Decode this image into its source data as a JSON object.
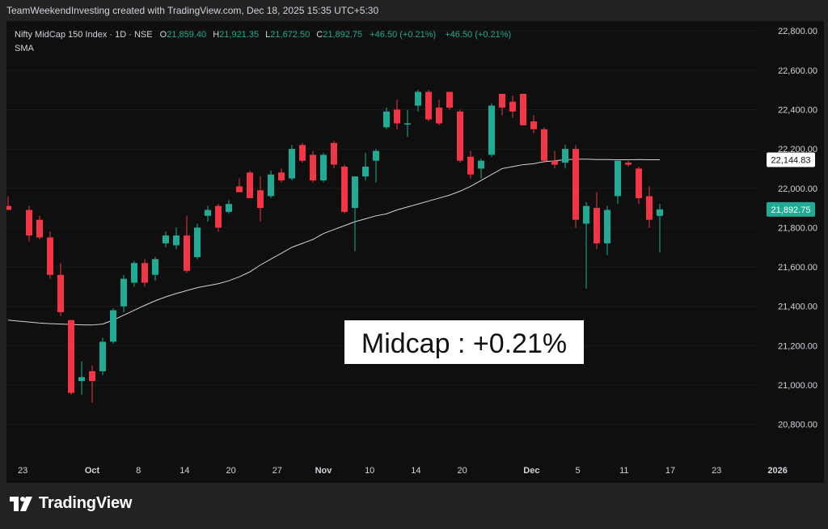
{
  "header": {
    "credit": "TeamWeekendInvesting created with TradingView.com, Dec 18, 2025 15:35 UTC+5:30"
  },
  "legend": {
    "symbol": "Nifty MidCap 150 Index · 1D · NSE",
    "o_label": "O",
    "o_value": "21,859.40",
    "h_label": "H",
    "h_value": "21,921.35",
    "l_label": "L",
    "l_value": "21,672.50",
    "c_label": "C",
    "c_value": "21,892.75",
    "change1": "+46.50 (+0.21%)",
    "change2": "+46.50 (+0.21%)",
    "indicator": "SMA"
  },
  "annotation": "Midcap : +0.21%",
  "footer": {
    "brand": "TradingView"
  },
  "colors": {
    "up": "#22ab94",
    "down": "#f23645",
    "sma": "#d1d4dc",
    "background": "#0f0f0f",
    "text": "#d1d4dc",
    "value_text": "#22ab94"
  },
  "chart_data": {
    "type": "candlestick",
    "symbol": "Nifty MidCap 150 Index",
    "timeframe": "1D",
    "exchange": "NSE",
    "y_axis": {
      "min": 20630,
      "max": 22850,
      "ticks": [
        20800,
        21000,
        21200,
        21400,
        21600,
        21800,
        22000,
        22200,
        22400,
        22600,
        22800
      ],
      "tick_labels": [
        "20,800.00",
        "21,000.00",
        "21,200.00",
        "21,400.00",
        "21,600.00",
        "21,800.00",
        "22,000.00",
        "22,200.00",
        "22,400.00",
        "22,600.00",
        "22,800.00"
      ]
    },
    "x_axis": {
      "ticks": [
        {
          "label": "23",
          "bar": 1.4
        },
        {
          "label": "Oct",
          "bar": 8
        },
        {
          "label": "8",
          "bar": 12.4
        },
        {
          "label": "14",
          "bar": 16.8
        },
        {
          "label": "20",
          "bar": 21.2
        },
        {
          "label": "27",
          "bar": 25.6
        },
        {
          "label": "Nov",
          "bar": 30
        },
        {
          "label": "10",
          "bar": 34.4
        },
        {
          "label": "14",
          "bar": 38.8
        },
        {
          "label": "20",
          "bar": 43.2
        },
        {
          "label": "Dec",
          "bar": 49.8
        },
        {
          "label": "5",
          "bar": 54.2
        },
        {
          "label": "11",
          "bar": 58.6
        },
        {
          "label": "17",
          "bar": 63
        },
        {
          "label": "23",
          "bar": 67.4
        },
        {
          "label": "2026",
          "bar": 73.2
        }
      ]
    },
    "candles": [
      {
        "o": 21910,
        "h": 21960,
        "l": 21890,
        "c": 21890
      },
      {
        "o": 21890,
        "h": 21910,
        "l": 21730,
        "c": 21760
      },
      {
        "o": 21840,
        "h": 21860,
        "l": 21740,
        "c": 21750
      },
      {
        "o": 21750,
        "h": 21780,
        "l": 21540,
        "c": 21560
      },
      {
        "o": 21560,
        "h": 21620,
        "l": 21350,
        "c": 21370
      },
      {
        "o": 21330,
        "h": 21330,
        "l": 20950,
        "c": 20960
      },
      {
        "o": 21020,
        "h": 21120,
        "l": 20950,
        "c": 21040
      },
      {
        "o": 21070,
        "h": 21100,
        "l": 20910,
        "c": 21020
      },
      {
        "o": 21070,
        "h": 21240,
        "l": 21050,
        "c": 21220
      },
      {
        "o": 21220,
        "h": 21390,
        "l": 21210,
        "c": 21380
      },
      {
        "o": 21400,
        "h": 21560,
        "l": 21370,
        "c": 21540
      },
      {
        "o": 21520,
        "h": 21630,
        "l": 21500,
        "c": 21620
      },
      {
        "o": 21620,
        "h": 21640,
        "l": 21500,
        "c": 21520
      },
      {
        "o": 21560,
        "h": 21650,
        "l": 21530,
        "c": 21640
      },
      {
        "o": 21720,
        "h": 21780,
        "l": 21700,
        "c": 21760
      },
      {
        "o": 21710,
        "h": 21800,
        "l": 21690,
        "c": 21760
      },
      {
        "o": 21760,
        "h": 21860,
        "l": 21570,
        "c": 21580
      },
      {
        "o": 21650,
        "h": 21820,
        "l": 21640,
        "c": 21800
      },
      {
        "o": 21860,
        "h": 21910,
        "l": 21830,
        "c": 21890
      },
      {
        "o": 21910,
        "h": 21920,
        "l": 21780,
        "c": 21800
      },
      {
        "o": 21880,
        "h": 21940,
        "l": 21870,
        "c": 21920
      },
      {
        "o": 22010,
        "h": 22050,
        "l": 21980,
        "c": 21980
      },
      {
        "o": 22080,
        "h": 22090,
        "l": 21950,
        "c": 21950
      },
      {
        "o": 21990,
        "h": 22060,
        "l": 21830,
        "c": 21900
      },
      {
        "o": 21960,
        "h": 22090,
        "l": 21950,
        "c": 22070
      },
      {
        "o": 22080,
        "h": 22100,
        "l": 22030,
        "c": 22040
      },
      {
        "o": 22050,
        "h": 22220,
        "l": 22040,
        "c": 22200
      },
      {
        "o": 22220,
        "h": 22230,
        "l": 22130,
        "c": 22140
      },
      {
        "o": 22170,
        "h": 22190,
        "l": 22030,
        "c": 22040
      },
      {
        "o": 22040,
        "h": 22180,
        "l": 22030,
        "c": 22170
      },
      {
        "o": 22230,
        "h": 22240,
        "l": 22100,
        "c": 22120
      },
      {
        "o": 22110,
        "h": 22120,
        "l": 21870,
        "c": 21880
      },
      {
        "o": 21900,
        "h": 22060,
        "l": 21680,
        "c": 22060
      },
      {
        "o": 22060,
        "h": 22180,
        "l": 22040,
        "c": 22110
      },
      {
        "o": 22140,
        "h": 22200,
        "l": 22030,
        "c": 22190
      },
      {
        "o": 22310,
        "h": 22410,
        "l": 22300,
        "c": 22390
      },
      {
        "o": 22400,
        "h": 22450,
        "l": 22300,
        "c": 22330
      },
      {
        "o": 22330,
        "h": 22400,
        "l": 22260,
        "c": 22330
      },
      {
        "o": 22420,
        "h": 22500,
        "l": 22390,
        "c": 22490
      },
      {
        "o": 22490,
        "h": 22500,
        "l": 22340,
        "c": 22350
      },
      {
        "o": 22410,
        "h": 22450,
        "l": 22320,
        "c": 22330
      },
      {
        "o": 22490,
        "h": 22490,
        "l": 22400,
        "c": 22410
      },
      {
        "o": 22390,
        "h": 22400,
        "l": 22130,
        "c": 22140
      },
      {
        "o": 22160,
        "h": 22190,
        "l": 22050,
        "c": 22070
      },
      {
        "o": 22100,
        "h": 22150,
        "l": 22050,
        "c": 22140
      },
      {
        "o": 22170,
        "h": 22430,
        "l": 22160,
        "c": 22420
      },
      {
        "o": 22480,
        "h": 22480,
        "l": 22370,
        "c": 22410
      },
      {
        "o": 22440,
        "h": 22470,
        "l": 22360,
        "c": 22390
      },
      {
        "o": 22480,
        "h": 22480,
        "l": 22330,
        "c": 22320
      },
      {
        "o": 22340,
        "h": 22370,
        "l": 22280,
        "c": 22300
      },
      {
        "o": 22300,
        "h": 22310,
        "l": 22130,
        "c": 22140
      },
      {
        "o": 22140,
        "h": 22190,
        "l": 22100,
        "c": 22120
      },
      {
        "o": 22130,
        "h": 22220,
        "l": 22100,
        "c": 22200
      },
      {
        "o": 22200,
        "h": 22220,
        "l": 21800,
        "c": 21840
      },
      {
        "o": 21820,
        "h": 21930,
        "l": 21490,
        "c": 21910
      },
      {
        "o": 21900,
        "h": 21980,
        "l": 21690,
        "c": 21720
      },
      {
        "o": 21720,
        "h": 21910,
        "l": 21660,
        "c": 21890
      },
      {
        "o": 21960,
        "h": 22140,
        "l": 21920,
        "c": 22140
      },
      {
        "o": 22130,
        "h": 22140,
        "l": 22110,
        "c": 22120
      },
      {
        "o": 22100,
        "h": 22110,
        "l": 21920,
        "c": 21950
      },
      {
        "o": 21960,
        "h": 22010,
        "l": 21800,
        "c": 21840
      },
      {
        "o": 21859.4,
        "h": 21921.35,
        "l": 21672.5,
        "c": 21892.75
      }
    ],
    "candle_positions": [
      0,
      2,
      3,
      4,
      5,
      6,
      7,
      8,
      9,
      10,
      11,
      12,
      13,
      14,
      15,
      16,
      17,
      18,
      19,
      20,
      21,
      22,
      23,
      24,
      25,
      26,
      27,
      28,
      29,
      30,
      31,
      32,
      33,
      34,
      35,
      36,
      37,
      38,
      39,
      40,
      41,
      42,
      43,
      44,
      45,
      46,
      47,
      48,
      49,
      50,
      51,
      52,
      53,
      54,
      55,
      56,
      57,
      58,
      59,
      60,
      61,
      62
    ],
    "series": [
      {
        "name": "SMA",
        "values": [
          21330,
          21325,
          21320,
          21315,
          21312,
          21310,
          21308,
          21306,
          21305,
          21310,
          21330,
          21355,
          21380,
          21405,
          21428,
          21448,
          21465,
          21480,
          21495,
          21505,
          21515,
          21530,
          21550,
          21575,
          21610,
          21640,
          21670,
          21700,
          21720,
          21740,
          21770,
          21790,
          21810,
          21830,
          21845,
          21860,
          21870,
          21890,
          21905,
          21920,
          21935,
          21950,
          21965,
          21985,
          22010,
          22040,
          22070,
          22100,
          22110,
          22120,
          22125,
          22135,
          22140,
          22145,
          22148,
          22148,
          22146,
          22146,
          22145,
          22145,
          22146,
          22145,
          22144.83
        ]
      }
    ],
    "last_values": [
      {
        "label": "22,144.83",
        "value": 22144.83,
        "series": "SMA"
      },
      {
        "label": "21,892.75",
        "value": 21892.75,
        "series": "price"
      }
    ]
  }
}
